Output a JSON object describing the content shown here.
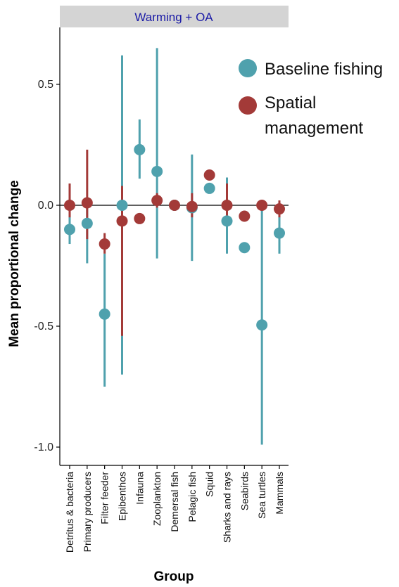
{
  "chart_data": {
    "type": "scatter",
    "facet_title": "Warming + OA",
    "xlabel": "Group",
    "ylabel": "Mean proportional change",
    "ylim": [
      -1.1,
      0.73
    ],
    "yticks": [
      -1.0,
      -0.5,
      0.0,
      0.5
    ],
    "ytick_labels": [
      "-1.0",
      "-0.5",
      "0.0",
      "0.5"
    ],
    "reference_line": 0,
    "grid": false,
    "legend_position": "top-right",
    "categories": [
      "Detritus & bacteria",
      "Primary producers",
      "Filter feeder",
      "Epibenthos",
      "Infauna",
      "Zooplankton",
      "Demersal fish",
      "Pelagic fish",
      "Squid",
      "Sharks and rays",
      "Seabirds",
      "Sea turtles",
      "Mammals"
    ],
    "series": [
      {
        "name": "Baseline fishing",
        "color": "#4fa1ad",
        "values": [
          -0.1,
          -0.075,
          -0.45,
          0.0,
          0.23,
          0.14,
          0.0,
          -0.01,
          0.07,
          -0.065,
          -0.175,
          -0.495,
          -0.115
        ],
        "lower": [
          -0.16,
          -0.24,
          -0.75,
          -0.7,
          0.11,
          -0.22,
          -0.01,
          -0.23,
          0.05,
          -0.2,
          -0.19,
          -0.99,
          -0.2
        ],
        "upper": [
          -0.04,
          0.0,
          -0.2,
          0.62,
          0.355,
          0.65,
          0.01,
          0.21,
          0.085,
          0.115,
          -0.16,
          0.0,
          -0.03
        ]
      },
      {
        "name": "Spatial management",
        "color": "#a33a38",
        "values": [
          0.0,
          0.01,
          -0.16,
          -0.065,
          -0.055,
          0.02,
          0.0,
          -0.005,
          0.125,
          0.0,
          -0.045,
          0.0,
          -0.015
        ],
        "lower": [
          -0.05,
          -0.14,
          -0.2,
          -0.54,
          -0.075,
          -0.01,
          -0.01,
          -0.05,
          0.11,
          -0.05,
          -0.06,
          -0.005,
          -0.05
        ],
        "upper": [
          0.09,
          0.23,
          -0.115,
          0.08,
          -0.035,
          0.05,
          0.01,
          0.05,
          0.14,
          0.09,
          -0.03,
          0.005,
          0.02
        ]
      }
    ]
  },
  "legend": {
    "entry1": "Baseline fishing",
    "entry2_line1": "Spatial",
    "entry2_line2": "management"
  }
}
